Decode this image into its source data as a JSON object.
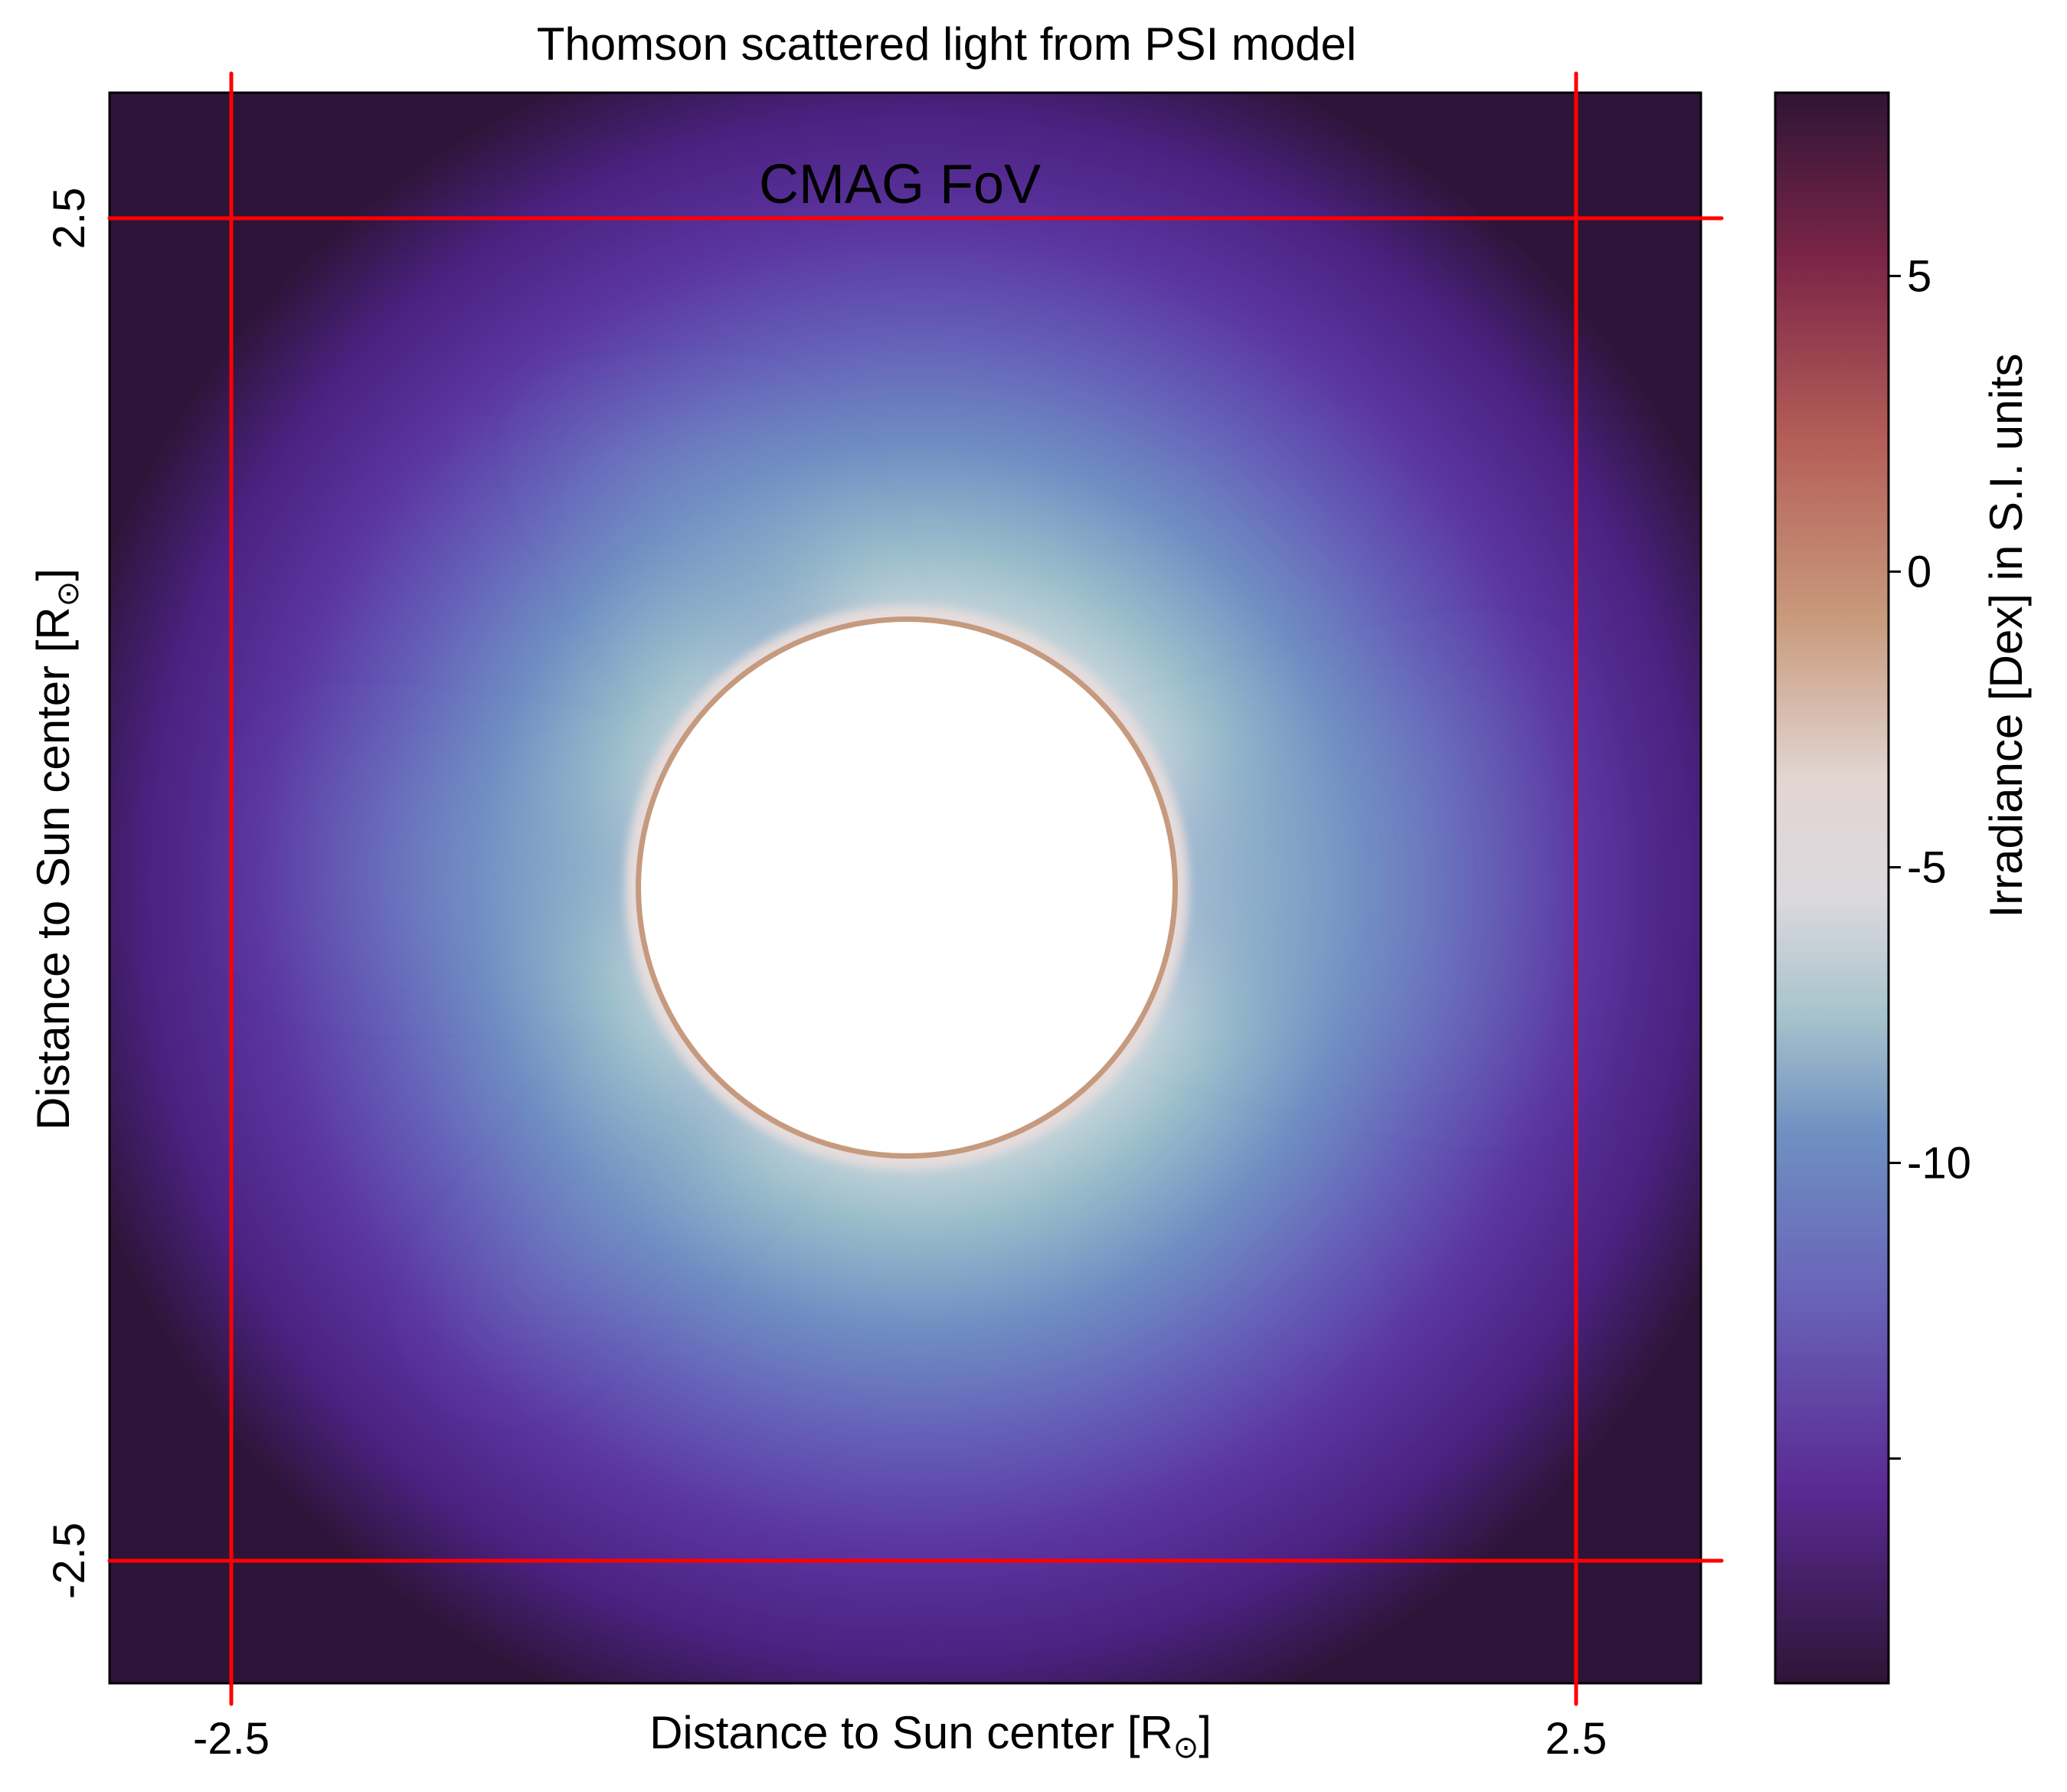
{
  "chart_data": {
    "type": "heatmap",
    "title": "Thomson scattered light from PSI model",
    "annotation": "CMAG FoV",
    "xlabel": "Distance to Sun center [R",
    "ylabel": "Distance to Sun center [R",
    "axis_unit_subscript": "⊙",
    "axis_unit_close": "]",
    "x_ticks": [
      "-2.5",
      "2.5"
    ],
    "y_ticks": [
      "2.5",
      "-2.5"
    ],
    "xlim": [
      -2.96,
      2.96
    ],
    "ylim": [
      -2.96,
      2.96
    ],
    "fov_box": {
      "x": [
        -2.5,
        2.5
      ],
      "y": [
        -2.5,
        2.5
      ],
      "color": "#ff0000"
    },
    "occulter_radius": 1.0,
    "colorbar": {
      "label": "Irradiance [Dex] in S.I. units",
      "ticks": [
        "5",
        "0",
        "-5",
        "-10"
      ],
      "tick_values": [
        5,
        0,
        -5,
        -10
      ],
      "minor_tick_values": [
        -15
      ],
      "range": [
        -18.8,
        8.1
      ],
      "colormap": "twilight",
      "stops": [
        {
          "value": -18.8,
          "color": "#2f1436"
        },
        {
          "value": -15.5,
          "color": "#5a2a93"
        },
        {
          "value": -12.3,
          "color": "#6962b8"
        },
        {
          "value": -9.5,
          "color": "#6f90c2"
        },
        {
          "value": -7.5,
          "color": "#a7c3cc"
        },
        {
          "value": -5.5,
          "color": "#dcd9de"
        },
        {
          "value": -3.5,
          "color": "#e2d5d2"
        },
        {
          "value": -0.8,
          "color": "#c99a7c"
        },
        {
          "value": 2.2,
          "color": "#b45f58"
        },
        {
          "value": 5.2,
          "color": "#7e2648"
        },
        {
          "value": 8.1,
          "color": "#2f1436"
        }
      ]
    }
  }
}
